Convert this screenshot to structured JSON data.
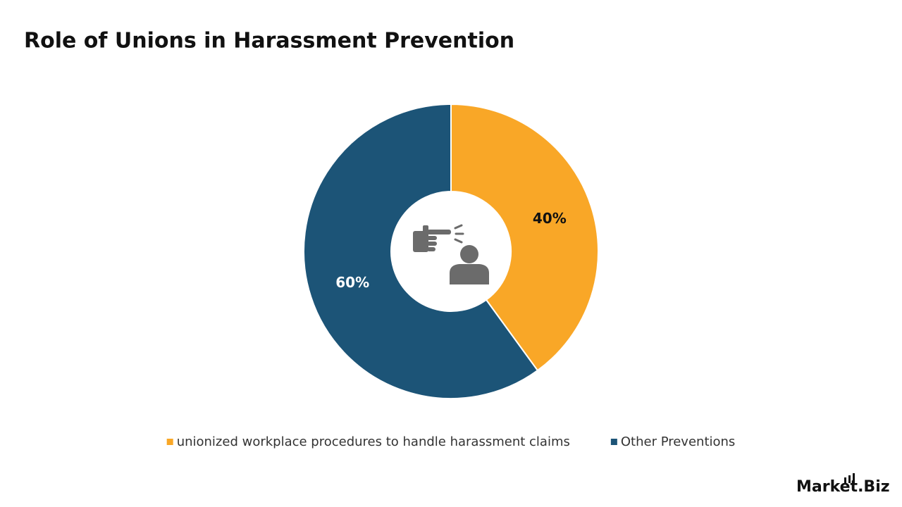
{
  "chart_data": {
    "type": "donut",
    "title": "Role of Unions in Harassment Prevention",
    "categories": [
      "unionized workplace procedures to handle harassment claims",
      "Other Preventions"
    ],
    "values": [
      40,
      60
    ],
    "value_labels": [
      "40%",
      "60%"
    ],
    "colors": [
      "#f9a727",
      "#1c5477"
    ],
    "value_label_colors": [
      "#111111",
      "#ffffff"
    ],
    "legend": "bottom"
  },
  "logo": "Market.Biz"
}
